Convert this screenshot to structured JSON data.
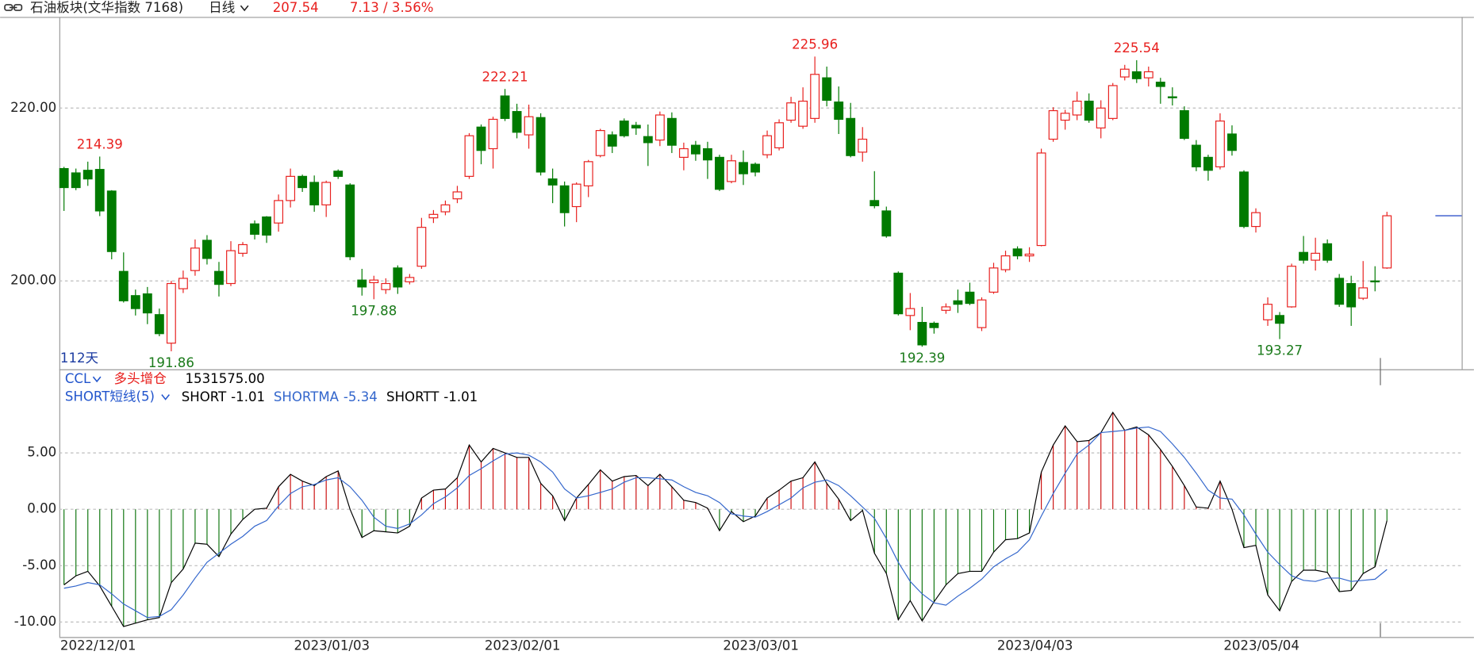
{
  "header": {
    "title": "石油板块(文华指数 7168)",
    "period": "日线",
    "price": 207.54,
    "change": "7.13 / 3.56%"
  },
  "chart_data": [
    {
      "type": "candlestick",
      "range_label": "112天",
      "up_color": "#e8201e",
      "down_color": "#007a00",
      "marker_color": "#3355cc",
      "grid": true,
      "ylim": [
        189.78,
        230.33
      ],
      "yticks": [
        {
          "value": 200,
          "label": "200.00"
        },
        {
          "value": 220,
          "label": "220.00"
        }
      ],
      "indicator": {
        "name": "CCL",
        "signal": "多头增仓",
        "value": {
          "value": 1531575,
          "label": "1531575.00"
        }
      },
      "open": [
        213.0,
        212.5,
        212.8,
        212.9,
        210.4,
        201.1,
        198.3,
        198.5,
        196.1,
        192.8,
        199.1,
        201.2,
        204.7,
        201.1,
        199.7,
        203.2,
        206.6,
        207.4,
        206.7,
        209.3,
        212.1,
        211.4,
        208.8,
        212.7,
        211.1,
        200.1,
        199.8,
        199.0,
        201.5,
        199.9,
        201.7,
        207.3,
        208.0,
        209.5,
        212.1,
        217.8,
        215.3,
        221.4,
        219.6,
        216.9,
        218.9,
        211.8,
        211.0,
        208.6,
        211.0,
        214.5,
        216.9,
        218.5,
        218.0,
        216.7,
        216.3,
        218.8,
        214.3,
        215.7,
        215.3,
        214.3,
        211.5,
        213.7,
        213.5,
        214.6,
        215.4,
        218.6,
        217.9,
        218.8,
        223.5,
        220.7,
        218.8,
        214.9,
        209.3,
        208.1,
        200.9,
        196.0,
        195.2,
        195.1,
        196.6,
        197.7,
        198.7,
        194.6,
        198.7,
        201.3,
        203.7,
        202.9,
        204.1,
        216.4,
        218.6,
        219.2,
        220.8,
        217.7,
        218.8,
        223.6,
        224.2,
        223.5,
        223.0,
        221.3,
        219.7,
        215.7,
        214.3,
        213.2,
        217.0,
        212.6,
        206.3,
        195.5,
        196.0,
        197.0,
        203.3,
        202.4,
        204.3,
        200.3,
        199.7,
        198.0,
        200.0,
        201.5
      ],
      "high": [
        213.2,
        213.0,
        213.8,
        214.39,
        210.5,
        203.3,
        199.0,
        199.3,
        196.8,
        200.0,
        201.2,
        204.8,
        205.3,
        202.2,
        204.6,
        204.5,
        207.0,
        207.5,
        210.0,
        213.0,
        212.3,
        212.2,
        211.6,
        212.9,
        211.3,
        201.4,
        200.6,
        200.3,
        201.8,
        200.8,
        207.3,
        208.2,
        209.3,
        211.0,
        217.1,
        218.1,
        219.0,
        222.21,
        220.5,
        220.4,
        219.4,
        213.0,
        211.5,
        211.4,
        214.0,
        217.6,
        217.3,
        218.8,
        218.4,
        218.1,
        219.6,
        219.5,
        216.0,
        216.2,
        216.1,
        214.6,
        214.6,
        215.1,
        213.7,
        217.4,
        218.7,
        221.3,
        222.4,
        225.96,
        224.8,
        222.5,
        220.6,
        217.8,
        212.7,
        208.6,
        201.1,
        198.6,
        197.0,
        195.3,
        197.4,
        199.0,
        199.8,
        198.1,
        202.1,
        203.5,
        204.0,
        203.9,
        215.3,
        220.1,
        219.8,
        221.9,
        221.7,
        220.9,
        222.9,
        225.0,
        225.54,
        224.8,
        223.5,
        222.4,
        220.2,
        216.3,
        214.6,
        219.4,
        218.0,
        212.8,
        208.4,
        198.1,
        196.4,
        202.0,
        205.2,
        205.0,
        204.8,
        200.8,
        200.6,
        202.3,
        201.7,
        208.0
      ],
      "low": [
        208.1,
        210.5,
        211.0,
        207.5,
        202.5,
        197.5,
        196.0,
        195.0,
        193.6,
        191.86,
        198.6,
        200.6,
        201.9,
        198.2,
        199.4,
        202.8,
        204.8,
        204.4,
        205.7,
        208.5,
        210.3,
        208.0,
        207.4,
        211.8,
        202.4,
        198.3,
        197.88,
        198.5,
        198.5,
        199.6,
        201.4,
        206.7,
        207.6,
        209.0,
        211.8,
        213.5,
        213.0,
        218.5,
        216.5,
        215.3,
        212.2,
        209.0,
        206.3,
        206.8,
        209.7,
        214.3,
        214.8,
        216.6,
        216.9,
        213.3,
        215.6,
        214.8,
        212.8,
        213.9,
        211.8,
        210.4,
        211.3,
        211.1,
        212.1,
        214.2,
        215.1,
        218.3,
        217.6,
        218.3,
        220.2,
        217.0,
        214.3,
        213.8,
        208.4,
        205.0,
        196.0,
        194.3,
        192.39,
        193.9,
        196.2,
        196.3,
        197.2,
        194.2,
        198.5,
        201.0,
        202.5,
        202.2,
        204.0,
        216.1,
        217.5,
        218.6,
        218.3,
        216.5,
        218.6,
        223.2,
        222.9,
        222.5,
        220.5,
        220.3,
        216.3,
        212.7,
        211.6,
        212.9,
        214.5,
        206.1,
        205.6,
        194.8,
        193.27,
        196.9,
        202.0,
        201.2,
        202.1,
        197.0,
        194.8,
        197.8,
        198.8,
        201.4
      ],
      "close": [
        210.8,
        210.8,
        211.8,
        208.1,
        203.4,
        197.7,
        196.8,
        196.3,
        193.9,
        199.7,
        200.3,
        203.8,
        202.6,
        199.6,
        203.5,
        204.2,
        205.4,
        205.3,
        209.3,
        212.1,
        210.8,
        208.8,
        211.4,
        212.1,
        202.8,
        199.3,
        200.1,
        199.7,
        199.3,
        200.4,
        206.2,
        207.7,
        208.8,
        210.3,
        216.8,
        215.1,
        218.7,
        218.8,
        217.2,
        219.0,
        212.6,
        211.1,
        207.9,
        211.2,
        213.8,
        217.4,
        215.6,
        216.8,
        217.7,
        216.0,
        219.2,
        215.7,
        215.3,
        214.7,
        214.0,
        210.6,
        213.9,
        212.4,
        212.6,
        216.8,
        218.3,
        220.6,
        220.8,
        223.9,
        220.9,
        218.7,
        214.5,
        216.4,
        208.7,
        205.2,
        196.2,
        196.8,
        192.6,
        194.6,
        197.0,
        197.3,
        197.4,
        197.8,
        201.5,
        202.9,
        202.9,
        203.1,
        214.8,
        219.7,
        219.4,
        220.8,
        218.6,
        220.0,
        222.6,
        224.5,
        223.4,
        224.2,
        222.5,
        221.2,
        216.5,
        213.2,
        212.8,
        218.5,
        215.1,
        206.3,
        207.9,
        197.3,
        195.1,
        201.7,
        202.4,
        203.2,
        202.4,
        197.3,
        197.0,
        199.2,
        199.9,
        207.54
      ],
      "annotations": [
        {
          "index": 3,
          "value": 214.39,
          "position": "above"
        },
        {
          "index": 37,
          "value": 222.21,
          "position": "above"
        },
        {
          "index": 63,
          "value": 225.96,
          "position": "above"
        },
        {
          "index": 90,
          "value": 225.54,
          "position": "above"
        },
        {
          "index": 9,
          "value": 191.86,
          "position": "below"
        },
        {
          "index": 26,
          "value": 197.88,
          "position": "below"
        },
        {
          "index": 72,
          "value": 192.39,
          "position": "below"
        },
        {
          "index": 102,
          "value": 193.27,
          "position": "below"
        }
      ]
    },
    {
      "type": "line",
      "title": "SHORT短线(5)",
      "grid": true,
      "bar_up_color": "#cc1111",
      "bar_down_color": "#117711",
      "ylim": [
        -11.33,
        12.42
      ],
      "yticks": [
        {
          "value": 5,
          "label": "5.00"
        },
        {
          "value": 0,
          "label": "0.00"
        },
        {
          "value": -5,
          "label": "-5.00"
        },
        {
          "value": -10,
          "label": "-10.00"
        }
      ],
      "categories": [
        "2022/12/01",
        null,
        null,
        null,
        null,
        null,
        null,
        null,
        null,
        null,
        null,
        null,
        null,
        null,
        null,
        null,
        null,
        null,
        null,
        null,
        null,
        null,
        "2023/01/03",
        null,
        null,
        null,
        null,
        null,
        null,
        null,
        null,
        null,
        null,
        null,
        null,
        null,
        null,
        null,
        "2023/02/01",
        null,
        null,
        null,
        null,
        null,
        null,
        null,
        null,
        null,
        null,
        null,
        null,
        null,
        null,
        null,
        null,
        null,
        null,
        null,
        "2023/03/01",
        null,
        null,
        null,
        null,
        null,
        null,
        null,
        null,
        null,
        null,
        null,
        null,
        null,
        null,
        null,
        null,
        null,
        null,
        null,
        null,
        null,
        null,
        "2023/04/03",
        null,
        null,
        null,
        null,
        null,
        null,
        null,
        null,
        null,
        null,
        null,
        null,
        null,
        null,
        null,
        null,
        null,
        null,
        "2023/05/04",
        null,
        null,
        null,
        null,
        null,
        null,
        null,
        null,
        null,
        null,
        null
      ],
      "series": [
        {
          "name": "SHORT",
          "color": "#000000",
          "values": [
            -6.7,
            -5.9,
            -5.5,
            -6.8,
            -8.6,
            -10.4,
            -10.1,
            -9.8,
            -9.6,
            -6.5,
            -5.3,
            -3.0,
            -3.1,
            -4.2,
            -2.2,
            -0.9,
            0.0,
            0.1,
            2.0,
            3.1,
            2.5,
            2.1,
            2.9,
            3.4,
            0.0,
            -2.5,
            -1.9,
            -2.0,
            -2.1,
            -1.5,
            1.0,
            1.7,
            1.8,
            2.8,
            5.7,
            4.2,
            5.4,
            5.0,
            4.6,
            4.6,
            2.3,
            1.2,
            -1.0,
            1.0,
            2.2,
            3.5,
            2.5,
            2.9,
            3.0,
            2.1,
            3.1,
            2.0,
            0.8,
            0.6,
            0.1,
            -1.9,
            -0.2,
            -1.1,
            -0.6,
            1.0,
            1.7,
            2.5,
            2.8,
            4.2,
            2.3,
            0.9,
            -1.0,
            -0.1,
            -3.9,
            -5.7,
            -9.8,
            -8.1,
            -9.9,
            -8.2,
            -6.7,
            -5.7,
            -5.5,
            -5.5,
            -3.8,
            -2.7,
            -2.6,
            -2.1,
            3.3,
            5.7,
            7.4,
            6.0,
            6.1,
            6.8,
            8.6,
            7.0,
            7.3,
            6.6,
            5.3,
            3.8,
            2.1,
            0.2,
            0.1,
            2.5,
            0.0,
            -3.4,
            -3.2,
            -7.6,
            -9.0,
            -6.4,
            -5.4,
            -5.4,
            -5.6,
            -7.3,
            -7.2,
            -5.7,
            -5.1,
            -1.01
          ]
        },
        {
          "name": "SHORTMA",
          "color": "#3366cc",
          "values": [
            -7.0,
            -6.8,
            -6.5,
            -6.7,
            -7.5,
            -8.4,
            -9.0,
            -9.6,
            -9.5,
            -8.9,
            -7.6,
            -6.1,
            -4.7,
            -3.9,
            -3.1,
            -2.4,
            -1.5,
            -1.0,
            0.3,
            1.4,
            2.0,
            2.2,
            2.6,
            2.8,
            2.0,
            0.8,
            -0.7,
            -1.5,
            -1.7,
            -1.3,
            -0.5,
            0.5,
            1.1,
            1.9,
            3.0,
            3.6,
            4.3,
            4.9,
            5.0,
            4.8,
            4.2,
            3.3,
            1.8,
            1.0,
            1.2,
            1.5,
            1.8,
            2.4,
            2.8,
            2.8,
            2.7,
            2.6,
            2.0,
            1.5,
            1.2,
            0.6,
            -0.4,
            -0.6,
            -0.7,
            -0.2,
            0.4,
            1.0,
            1.9,
            2.4,
            2.6,
            2.1,
            1.2,
            0.2,
            -0.8,
            -2.6,
            -4.7,
            -6.4,
            -7.5,
            -8.3,
            -8.5,
            -7.7,
            -7.0,
            -6.2,
            -5.1,
            -4.4,
            -3.8,
            -2.7,
            -0.6,
            1.4,
            3.2,
            4.9,
            5.7,
            6.8,
            6.9,
            7.0,
            7.2,
            7.3,
            6.9,
            5.8,
            4.6,
            3.2,
            1.7,
            1.0,
            0.9,
            -0.5,
            -2.2,
            -3.8,
            -4.9,
            -5.9,
            -6.3,
            -6.4,
            -6.1,
            -6.1,
            -6.4,
            -6.3,
            -6.2,
            -5.34
          ]
        }
      ],
      "readouts": [
        {
          "name": "SHORTT",
          "value": -1.01
        }
      ]
    }
  ]
}
